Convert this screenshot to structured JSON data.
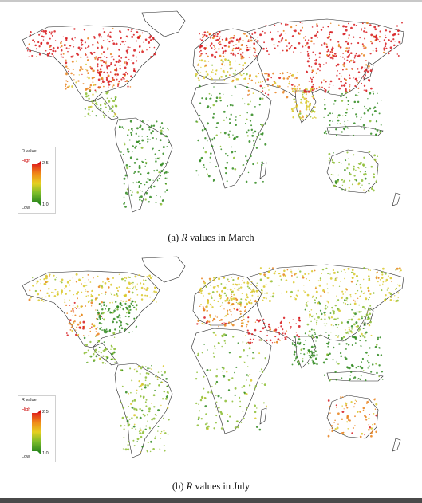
{
  "figure": {
    "panels": [
      {
        "id": "a",
        "caption_prefix": "(a) ",
        "caption_var": "R",
        "caption_suffix": " values in March",
        "legend": {
          "title": "R value",
          "high": "High",
          "low": "Low",
          "max": "2.5",
          "min": "1.0"
        }
      },
      {
        "id": "b",
        "caption_prefix": "(b) ",
        "caption_var": "R",
        "caption_suffix": " values in July",
        "legend": {
          "title": "R value",
          "high": "High",
          "low": "Low",
          "max": "2.5",
          "min": "1.0"
        }
      }
    ],
    "colors": {
      "high": "#d7191c",
      "mid_high": "#e8801a",
      "mid": "#d9c82a",
      "mid_low": "#8cbd32",
      "low": "#2f8a1e",
      "land_outline": "#222222",
      "ocean": "#ffffff"
    }
  },
  "regions_march": {
    "north_america_north": "high",
    "usa_east": "high",
    "usa_west": "mid_high",
    "mexico": "mid_low",
    "south_america": "low",
    "europe_north": "high",
    "europe_south": "mid",
    "africa": "low",
    "russia": "high",
    "middle_east": "mid_high",
    "india": "mid",
    "china": "high",
    "southeast_asia": "low",
    "australia": "mid_low"
  },
  "regions_july": {
    "north_america_north": "mid",
    "usa_east": "low",
    "usa_west": "mid_high",
    "mexico": "mid_low",
    "south_america": "mid_low",
    "europe_north": "mid",
    "europe_south": "mid_high",
    "africa": "mid_low",
    "russia": "mid",
    "middle_east": "high",
    "india": "low",
    "china": "mid_low",
    "southeast_asia": "low",
    "australia": "mid_high"
  }
}
